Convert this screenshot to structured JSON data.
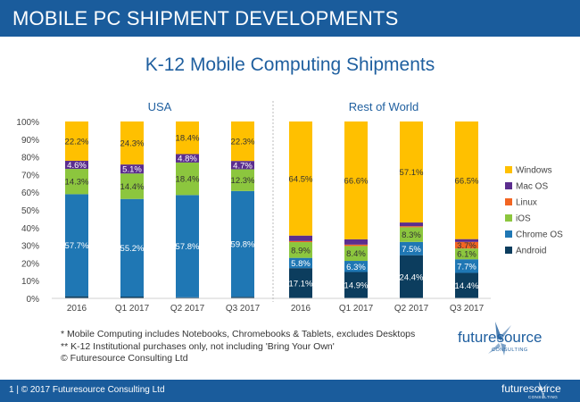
{
  "header": {
    "title": "MOBILE PC SHIPMENT DEVELOPMENTS"
  },
  "chart_data": {
    "type": "bar",
    "stacked": true,
    "title": "K-12 Mobile Computing Shipments",
    "y_axis": {
      "min": 0,
      "max": 100,
      "unit": "%",
      "ticks": [
        "0%",
        "10%",
        "20%",
        "30%",
        "40%",
        "50%",
        "60%",
        "70%",
        "80%",
        "90%",
        "100%"
      ]
    },
    "grid": false,
    "legend_position": "right",
    "panels": [
      {
        "title": "USA",
        "categories": [
          "2016",
          "Q1 2017",
          "Q2 2017",
          "Q3 2017"
        ],
        "series": [
          {
            "name": "Android",
            "values": [
              1.2,
              1.0,
              0.6,
              0.9
            ],
            "labels": [
              "",
              "",
              "",
              ""
            ]
          },
          {
            "name": "Chrome OS",
            "values": [
              57.7,
              55.2,
              57.8,
              59.8
            ],
            "labels": [
              "57.7%",
              "55.2%",
              "57.8%",
              "59.8%"
            ]
          },
          {
            "name": "iOS",
            "values": [
              14.3,
              14.4,
              18.4,
              12.3
            ],
            "labels": [
              "14.3%",
              "14.4%",
              "18.4%",
              "12.3%"
            ]
          },
          {
            "name": "Linux",
            "values": [
              0,
              0,
              0,
              0
            ],
            "labels": [
              "",
              "",
              "",
              ""
            ]
          },
          {
            "name": "Mac OS",
            "values": [
              4.6,
              5.1,
              4.8,
              4.7
            ],
            "labels": [
              "4.6%",
              "5.1%",
              "4.8%",
              "4.7%"
            ]
          },
          {
            "name": "Windows",
            "values": [
              22.2,
              24.3,
              18.4,
              22.3
            ],
            "labels": [
              "22.2%",
              "24.3%",
              "18.4%",
              "22.3%"
            ]
          }
        ]
      },
      {
        "title": "Rest of World",
        "categories": [
          "2016",
          "Q1 2017",
          "Q2 2017",
          "Q3 2017"
        ],
        "series": [
          {
            "name": "Android",
            "values": [
              17.1,
              14.9,
              24.4,
              14.4
            ],
            "labels": [
              "17.1%",
              "14.9%",
              "24.4%",
              "14.4%"
            ]
          },
          {
            "name": "Chrome OS",
            "values": [
              5.8,
              6.3,
              7.5,
              7.7
            ],
            "labels": [
              "5.8%",
              "6.3%",
              "7.5%",
              "7.7%"
            ]
          },
          {
            "name": "iOS",
            "values": [
              8.9,
              8.4,
              8.3,
              6.1
            ],
            "labels": [
              "8.9%",
              "8.4%",
              "8.3%",
              "6.1%"
            ]
          },
          {
            "name": "Linux",
            "values": [
              0.6,
              0.8,
              0.6,
              3.7
            ],
            "labels": [
              "",
              "",
              "",
              "3.7%"
            ]
          },
          {
            "name": "Mac OS",
            "values": [
              3.1,
              3.0,
              2.1,
              1.6
            ],
            "labels": [
              "",
              "",
              "",
              ""
            ]
          },
          {
            "name": "Windows",
            "values": [
              64.5,
              66.6,
              57.1,
              66.5
            ],
            "labels": [
              "64.5%",
              "66.6%",
              "57.1%",
              "66.5%"
            ]
          }
        ]
      }
    ],
    "colors": {
      "Android": "#0c3d5e",
      "Chrome OS": "#1f77b4",
      "iOS": "#8cc63e",
      "Linux": "#f26522",
      "Mac OS": "#5b2d8e",
      "Windows": "#ffc000"
    },
    "legend_order": [
      "Windows",
      "Mac OS",
      "Linux",
      "iOS",
      "Chrome OS",
      "Android"
    ]
  },
  "notes": [
    "* Mobile Computing includes Notebooks, Chromebooks & Tablets, excludes Desktops",
    "** K-12 Institutional purchases only, not including 'Bring Your Own'",
    "© Futuresource Consulting Ltd"
  ],
  "logo": {
    "name": "futuresource",
    "sub": "CONSULTING"
  },
  "footer": {
    "text": "1  |  © 2017 Futuresource Consulting Ltd"
  }
}
